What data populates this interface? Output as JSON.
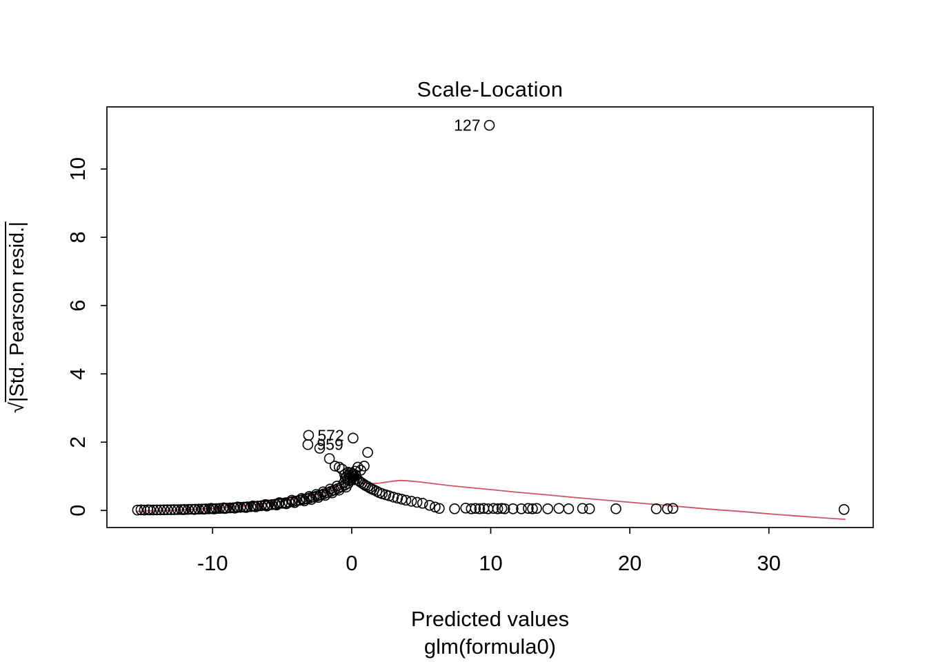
{
  "chart_data": {
    "type": "scatter",
    "title": "Scale-Location",
    "xlabel": "Predicted values",
    "xlabel2": "glm(formula0)",
    "ylabel": "√|Std. Pearson resid.|",
    "ylabel_sqrt": "√",
    "ylabel_body": "|Std. Pearson resid.|",
    "xlim": [
      -17.6,
      37.5
    ],
    "ylim": [
      -0.5,
      11.82
    ],
    "x_ticks": [
      -10,
      0,
      10,
      20,
      30
    ],
    "y_ticks": [
      0,
      2,
      4,
      6,
      8,
      10
    ],
    "grid": false,
    "colors": {
      "points": "#000000",
      "smoother": "#cf5268",
      "axis": "#000000",
      "background": "#ffffff"
    },
    "labeled_points": [
      {
        "id": "127",
        "x": 9.9,
        "y": 11.28,
        "side": "left"
      },
      {
        "id": "572",
        "x": -3.1,
        "y": 2.2,
        "side": "right"
      },
      {
        "id": "959",
        "x": -3.15,
        "y": 1.93,
        "side": "right"
      }
    ],
    "smoother": [
      [
        -15.5,
        -0.03
      ],
      [
        -14,
        -0.01
      ],
      [
        -12,
        0.02
      ],
      [
        -10,
        0.06
      ],
      [
        -8,
        0.12
      ],
      [
        -6,
        0.21
      ],
      [
        -5,
        0.27
      ],
      [
        -4,
        0.34
      ],
      [
        -3,
        0.42
      ],
      [
        -2,
        0.52
      ],
      [
        -1,
        0.64
      ],
      [
        -0.5,
        0.7
      ],
      [
        0,
        0.76
      ],
      [
        0.5,
        0.79
      ],
      [
        1,
        0.8
      ],
      [
        1.5,
        0.79
      ],
      [
        2,
        0.8
      ],
      [
        2.5,
        0.83
      ],
      [
        3,
        0.86
      ],
      [
        3.5,
        0.88
      ],
      [
        4,
        0.87
      ],
      [
        5,
        0.83
      ],
      [
        6,
        0.78
      ],
      [
        7,
        0.73
      ],
      [
        8,
        0.69
      ],
      [
        10,
        0.61
      ],
      [
        12,
        0.53
      ],
      [
        14,
        0.46
      ],
      [
        16,
        0.38
      ],
      [
        18,
        0.31
      ],
      [
        20,
        0.24
      ],
      [
        22,
        0.17
      ],
      [
        24,
        0.1
      ],
      [
        26,
        0.03
      ],
      [
        28,
        -0.03
      ],
      [
        30,
        -0.1
      ],
      [
        32,
        -0.16
      ],
      [
        34,
        -0.22
      ],
      [
        35.5,
        -0.26
      ]
    ],
    "points": [
      [
        -15.4,
        0.01
      ],
      [
        -15.15,
        0.02
      ],
      [
        -14.9,
        0.01
      ],
      [
        -14.65,
        0.02
      ],
      [
        -14.5,
        0.015
      ],
      [
        -14.25,
        0.016
      ],
      [
        -14,
        0.017
      ],
      [
        -13.75,
        0.018
      ],
      [
        -13.5,
        0.02
      ],
      [
        -13.25,
        0.021
      ],
      [
        -13,
        0.022
      ],
      [
        -12.75,
        0.024
      ],
      [
        -12.5,
        0.026
      ],
      [
        -12.25,
        0.028
      ],
      [
        -12,
        0.03
      ],
      [
        -11.75,
        0.032
      ],
      [
        -11.5,
        0.035
      ],
      [
        -11.25,
        0.037
      ],
      [
        -11,
        0.039
      ],
      [
        -10.75,
        0.042
      ],
      [
        -10.5,
        0.045
      ],
      [
        -10.25,
        0.048
      ],
      [
        -10,
        0.052
      ],
      [
        -9.75,
        0.056
      ],
      [
        -9.5,
        0.06
      ],
      [
        -9.25,
        0.064
      ],
      [
        -9,
        0.068
      ],
      [
        -8.75,
        0.073
      ],
      [
        -8.5,
        0.079
      ],
      [
        -8.25,
        0.085
      ],
      [
        -8,
        0.091
      ],
      [
        -7.75,
        0.098
      ],
      [
        -7.5,
        0.105
      ],
      [
        -7.25,
        0.112
      ],
      [
        -7,
        0.12
      ],
      [
        -6.75,
        0.129
      ],
      [
        -6.5,
        0.139
      ],
      [
        -6.25,
        0.148
      ],
      [
        -6,
        0.158
      ],
      [
        -5.75,
        0.17
      ],
      [
        -5.5,
        0.182
      ],
      [
        -5.25,
        0.196
      ],
      [
        -5,
        0.21
      ],
      [
        -4.75,
        0.225
      ],
      [
        -4.5,
        0.241
      ],
      [
        -4.25,
        0.259
      ],
      [
        -4,
        0.277
      ],
      [
        -3.75,
        0.297
      ],
      [
        -3.5,
        0.319
      ],
      [
        -3.25,
        0.342
      ],
      [
        -3,
        0.367
      ],
      [
        -2.75,
        0.393
      ],
      [
        -2.5,
        0.422
      ],
      [
        -2.25,
        0.453
      ],
      [
        -2,
        0.486
      ],
      [
        -1.75,
        0.521
      ],
      [
        -1.5,
        0.559
      ],
      [
        -1.25,
        0.599
      ],
      [
        -1,
        0.642
      ],
      [
        -0.75,
        0.689
      ],
      [
        -0.5,
        0.739
      ],
      [
        -0.25,
        0.792
      ],
      [
        -12.1,
        0.024
      ],
      [
        -11.3,
        0.03
      ],
      [
        -10.6,
        0.037
      ],
      [
        -9.9,
        0.044
      ],
      [
        -9.1,
        0.057
      ],
      [
        -8.4,
        0.068
      ],
      [
        -7.6,
        0.086
      ],
      [
        -6.9,
        0.105
      ],
      [
        -6.1,
        0.131
      ],
      [
        -5.4,
        0.16
      ],
      [
        -4.7,
        0.195
      ],
      [
        -4.1,
        0.232
      ],
      [
        -3.4,
        0.282
      ],
      [
        -2.9,
        0.325
      ],
      [
        -2.4,
        0.382
      ],
      [
        -1.9,
        0.443
      ],
      [
        -1.4,
        0.516
      ],
      [
        -0.9,
        0.596
      ],
      [
        -0.4,
        0.684
      ],
      [
        -10.1,
        0.062
      ],
      [
        -9.2,
        0.078
      ],
      [
        -8.2,
        0.102
      ],
      [
        -7.1,
        0.133
      ],
      [
        -6.2,
        0.172
      ],
      [
        -5.2,
        0.23
      ],
      [
        -4.3,
        0.3
      ],
      [
        -3.6,
        0.352
      ],
      [
        -3.05,
        0.41
      ],
      [
        -2.55,
        0.47
      ],
      [
        -2.05,
        0.545
      ],
      [
        -1.55,
        0.625
      ],
      [
        -1.05,
        0.715
      ],
      [
        -0.55,
        0.815
      ],
      [
        -0.15,
        0.878
      ],
      [
        -0.45,
        0.95
      ],
      [
        -0.35,
        1.0
      ],
      [
        -0.3,
        0.92
      ],
      [
        -0.2,
        1.05
      ],
      [
        -0.15,
        0.98
      ],
      [
        -0.1,
        1.1
      ],
      [
        0,
        1.02
      ],
      [
        0.05,
        0.95
      ],
      [
        0.1,
        1.08
      ],
      [
        0.15,
        1.0
      ],
      [
        -0.25,
        1.12
      ],
      [
        0.2,
        0.9
      ],
      [
        -0.5,
        1.05
      ],
      [
        0.25,
        1.15
      ],
      [
        0.3,
        1.04
      ],
      [
        -2.3,
        1.82
      ],
      [
        -1.6,
        1.52
      ],
      [
        -1.2,
        1.3
      ],
      [
        -0.9,
        1.27
      ],
      [
        0.1,
        2.12
      ],
      [
        1.15,
        1.7
      ],
      [
        0.9,
        1.3
      ],
      [
        0.45,
        1.27
      ],
      [
        0.65,
        1.18
      ],
      [
        -0.7,
        1.21
      ],
      [
        0.35,
        0.92
      ],
      [
        0.5,
        0.88
      ],
      [
        0.6,
        0.84
      ],
      [
        0.75,
        0.8
      ],
      [
        0.9,
        0.76
      ],
      [
        1.0,
        0.73
      ],
      [
        1.15,
        0.7
      ],
      [
        1.3,
        0.66
      ],
      [
        1.45,
        0.63
      ],
      [
        1.6,
        0.6
      ],
      [
        1.8,
        0.56
      ],
      [
        2.0,
        0.52
      ],
      [
        2.2,
        0.49
      ],
      [
        2.45,
        0.46
      ],
      [
        2.7,
        0.43
      ],
      [
        3.0,
        0.39
      ],
      [
        3.3,
        0.36
      ],
      [
        3.6,
        0.33
      ],
      [
        3.9,
        0.3
      ],
      [
        4.3,
        0.27
      ],
      [
        4.7,
        0.24
      ],
      [
        5.1,
        0.21
      ],
      [
        5.6,
        0.15
      ],
      [
        6.0,
        0.1
      ],
      [
        6.3,
        0.06
      ],
      [
        7.4,
        0.05
      ],
      [
        8.2,
        0.07
      ],
      [
        8.6,
        0.05
      ],
      [
        8.9,
        0.06
      ],
      [
        9.2,
        0.05
      ],
      [
        9.5,
        0.06
      ],
      [
        9.8,
        0.05
      ],
      [
        10.2,
        0.06
      ],
      [
        10.5,
        0.05
      ],
      [
        10.8,
        0.06
      ],
      [
        11.0,
        0.05
      ],
      [
        11.6,
        0.05
      ],
      [
        12.2,
        0.05
      ],
      [
        12.7,
        0.06
      ],
      [
        13.0,
        0.05
      ],
      [
        13.3,
        0.06
      ],
      [
        14.1,
        0.05
      ],
      [
        14.9,
        0.06
      ],
      [
        15.6,
        0.05
      ],
      [
        16.6,
        0.06
      ],
      [
        17.1,
        0.05
      ],
      [
        19.0,
        0.05
      ],
      [
        21.9,
        0.05
      ],
      [
        22.7,
        0.05
      ],
      [
        23.1,
        0.06
      ],
      [
        35.4,
        0.03
      ]
    ]
  }
}
